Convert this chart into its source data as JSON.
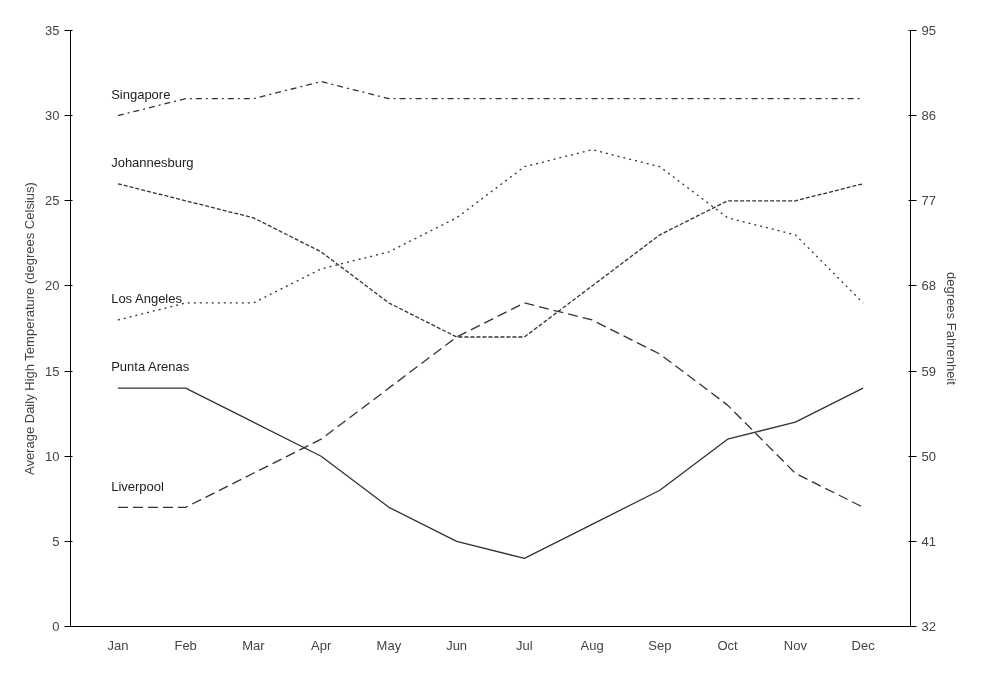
{
  "chart_data": {
    "type": "line",
    "ylabel": "Average Daily High Temperature (degrees Celsius)",
    "y2label": "degrees Fahrenheit",
    "categories": [
      "Jan",
      "Feb",
      "Mar",
      "Apr",
      "May",
      "Jun",
      "Jul",
      "Aug",
      "Sep",
      "Oct",
      "Nov",
      "Dec"
    ],
    "ylim": [
      0,
      35
    ],
    "yticks": [
      0,
      5,
      10,
      15,
      20,
      25,
      30,
      35
    ],
    "y2lim": [
      32,
      95
    ],
    "y2ticks": [
      32,
      41,
      50,
      59,
      68,
      77,
      86,
      95
    ],
    "grid": false,
    "marker": "none",
    "series": [
      {
        "name": "Singapore",
        "color": "#333333",
        "line_style": "dashdot",
        "values": [
          30,
          31,
          31,
          32,
          31,
          31,
          31,
          31,
          31,
          31,
          31,
          31
        ]
      },
      {
        "name": "Johannesburg",
        "color": "#333333",
        "line_style": "dashed",
        "values": [
          26,
          25,
          24,
          22,
          19,
          17,
          17,
          20,
          23,
          25,
          25,
          26
        ]
      },
      {
        "name": "Los Angeles",
        "color": "#333333",
        "line_style": "dotted",
        "values": [
          18,
          19,
          19,
          21,
          22,
          24,
          27,
          28,
          27,
          24,
          23,
          19
        ]
      },
      {
        "name": "Punta Arenas",
        "color": "#333333",
        "line_style": "solid",
        "values": [
          14,
          14,
          12,
          10,
          7,
          5,
          4,
          6,
          8,
          11,
          12,
          14
        ]
      },
      {
        "name": "Liverpool",
        "color": "#333333",
        "line_style": "longdash",
        "values": [
          7,
          7,
          9,
          11,
          14,
          17,
          19,
          18,
          16,
          13,
          9,
          7
        ]
      }
    ]
  }
}
